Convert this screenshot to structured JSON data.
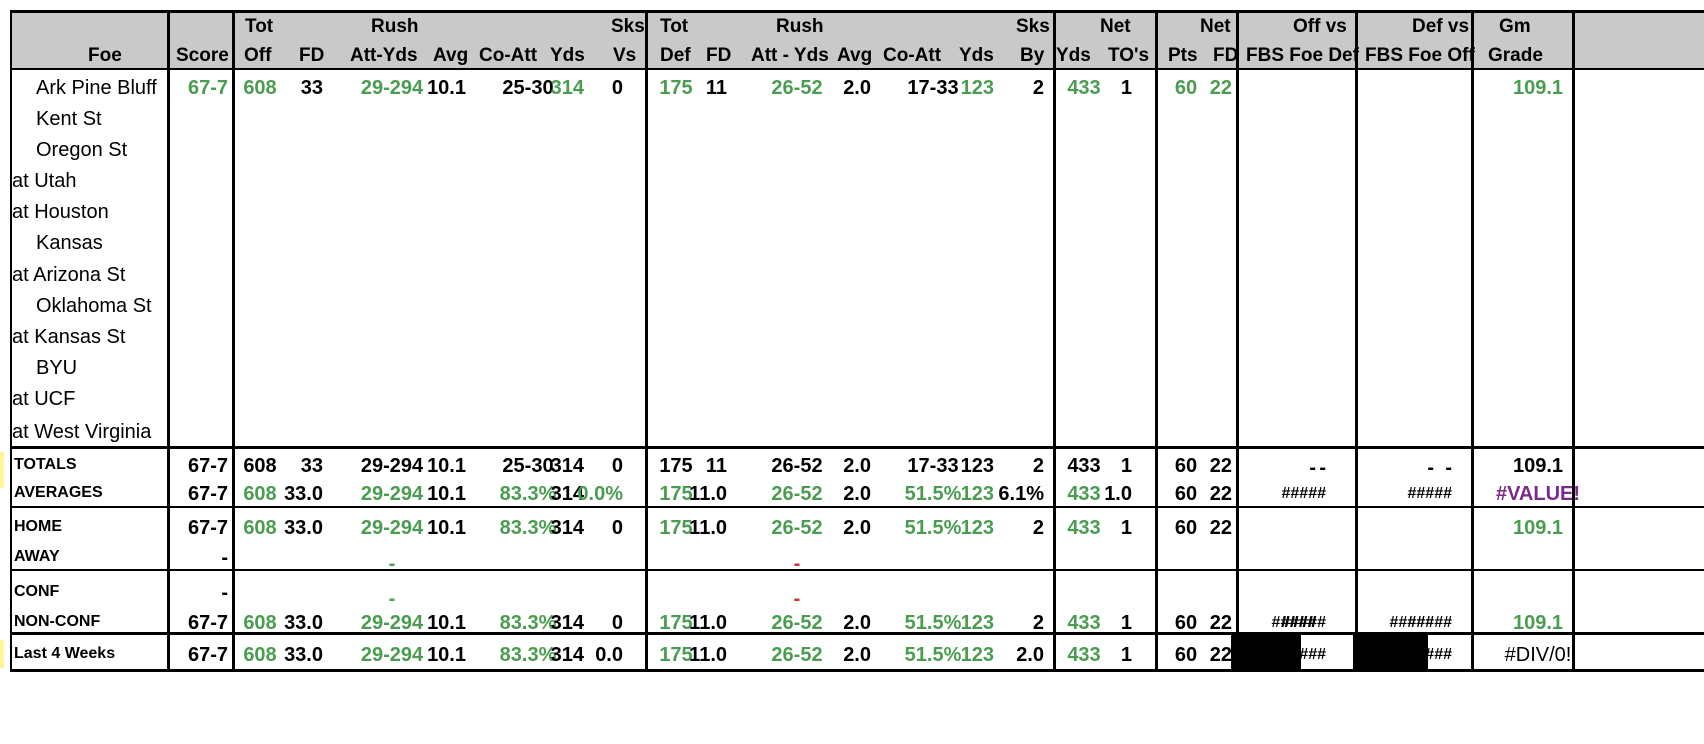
{
  "header": {
    "foe": "Foe",
    "score": "Score",
    "tot_off": [
      "Tot",
      "Off"
    ],
    "fd": "FD",
    "rush": [
      "Rush",
      "Att-Yds"
    ],
    "avg": "Avg",
    "co_att": "Co-Att",
    "yds": "Yds",
    "sks_vs": [
      "Sks",
      "Vs"
    ],
    "tot_def": [
      "Tot",
      "Def"
    ],
    "fd2": "FD",
    "rush2": [
      "Rush",
      "Att - Yds"
    ],
    "avg2": "Avg",
    "co_att2": "Co-Att",
    "yds2": "Yds",
    "sks_by": [
      "Sks",
      "By"
    ],
    "net1": [
      "Net",
      "Yds",
      "TO's"
    ],
    "net2": [
      "Net",
      "Pts",
      "FD"
    ],
    "off_vs": [
      "Off vs",
      "FBS Foe Def"
    ],
    "def_vs": [
      "Def vs",
      "FBS Foe Off"
    ],
    "gm_grade": [
      "Gm",
      "Grade"
    ]
  },
  "games": [
    {
      "foe": "Ark Pine Bluff",
      "score": "67-7",
      "tot_off": "608",
      "fd": "33",
      "rush": "29-294",
      "avg": "10.1",
      "co_att": "25-30",
      "yds": "314",
      "sks_vs": "0",
      "tot_def": "175",
      "fd2": "11",
      "rush2": "26-52",
      "avg2": "2.0",
      "co_att2": "17-33",
      "yds2": "123",
      "sks_by": "2",
      "net_yds": "433",
      "tos": "1",
      "net_pts": "60",
      "net_fd": "22",
      "grade": "109.1"
    },
    {
      "foe": "Kent St"
    },
    {
      "foe": "Oregon St"
    },
    {
      "foe": "at Utah"
    },
    {
      "foe": "at Houston"
    },
    {
      "foe": "Kansas"
    },
    {
      "foe": "at Arizona St"
    },
    {
      "foe": "Oklahoma St"
    },
    {
      "foe": "at Kansas St"
    },
    {
      "foe": "BYU"
    },
    {
      "foe": "at UCF"
    },
    {
      "foe": "at West Virginia"
    }
  ],
  "totals": {
    "label": "TOTALS",
    "score": "67-7",
    "tot_off": "608",
    "fd": "33",
    "rush": "29-294",
    "avg": "10.1",
    "co_att": "25-30",
    "yds": "314",
    "sks_vs": "0",
    "tot_def": "175",
    "fd2": "11",
    "rush2": "26-52",
    "avg2": "2.0",
    "co_att2": "17-33",
    "yds2": "123",
    "sks_by": "2",
    "net_yds": "433",
    "tos": "1",
    "net_pts": "60",
    "net_fd": "22",
    "off_a": "-",
    "off_b": "-",
    "def_a": "-",
    "def_b": "-",
    "grade": "109.1"
  },
  "averages": {
    "label": "AVERAGES",
    "score": "67-7",
    "tot_off": "608",
    "fd": "33.0",
    "rush": "29-294",
    "avg": "10.1",
    "co_att": "83.3%",
    "yds": "314",
    "sks_vs": "0.0%",
    "tot_def": "175",
    "fd2": "11.0",
    "rush2": "26-52",
    "avg2": "2.0",
    "co_att2": "51.5%",
    "yds2": "123",
    "sks_by": "6.1%",
    "net_yds": "433",
    "tos": "1.0",
    "net_pts": "60",
    "net_fd": "22",
    "off_b": "#####",
    "def_b": "#####",
    "grade": "#VALUE!"
  },
  "home": {
    "label": "HOME",
    "score": "67-7",
    "tot_off": "608",
    "fd": "33.0",
    "rush": "29-294",
    "avg": "10.1",
    "co_att": "83.3%",
    "yds": "314",
    "sks_vs": "0",
    "tot_def": "175",
    "fd2": "11.0",
    "rush2": "26-52",
    "avg2": "2.0",
    "co_att2": "51.5%",
    "yds2": "123",
    "sks_by": "2",
    "net_yds": "433",
    "tos": "1",
    "net_pts": "60",
    "net_fd": "22",
    "grade": "109.1"
  },
  "away": {
    "label": "AWAY",
    "score": "-",
    "rush": "-",
    "rush2": "-"
  },
  "conf": {
    "label": "CONF",
    "score": "-",
    "rush": "-",
    "rush2": "-"
  },
  "nonconf": {
    "label": "NON-CONF",
    "score": "67-7",
    "tot_off": "608",
    "fd": "33.0",
    "rush": "29-294",
    "avg": "10.1",
    "co_att": "83.3%",
    "yds": "314",
    "sks_vs": "0",
    "tot_def": "175",
    "fd2": "11.0",
    "rush2": "26-52",
    "avg2": "2.0",
    "co_att2": "51.5%",
    "yds2": "123",
    "sks_by": "2",
    "net_yds": "433",
    "tos": "1",
    "net_pts": "60",
    "net_fd": "22",
    "off_a": "#####",
    "off_b": "#####",
    "def_a": "#####",
    "def_b": "#####",
    "grade": "109.1"
  },
  "last4": {
    "label": "Last 4 Weeks",
    "score": "67-7",
    "tot_off": "608",
    "fd": "33.0",
    "rush": "29-294",
    "avg": "10.1",
    "co_att": "83.3%",
    "yds": "314",
    "sks_vs": "0.0",
    "tot_def": "175",
    "fd2": "11.0",
    "rush2": "26-52",
    "avg2": "2.0",
    "co_att2": "51.5%",
    "yds2": "123",
    "sks_by": "2.0",
    "net_yds": "433",
    "tos": "1",
    "net_pts": "60",
    "net_fd": "22",
    "off_b": "####",
    "def_b": "####",
    "grade": "#DIV/0!"
  },
  "colors": {
    "green": "#4a9d50",
    "red": "#d03030",
    "purple": "#7a2a88",
    "header_bg": "#c9c9c9"
  }
}
